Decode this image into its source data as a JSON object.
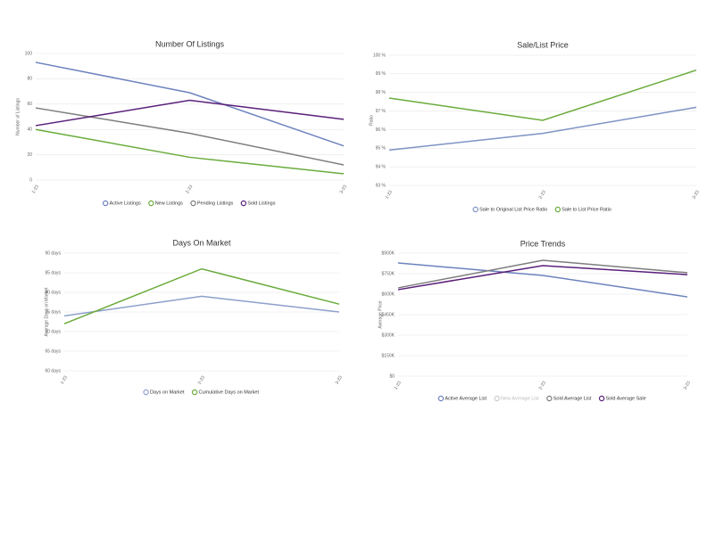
{
  "chart_data": [
    {
      "type": "line",
      "title": "Number Of Listings",
      "y_label": "Number of Listings",
      "categories": [
        "1-23",
        "2-23",
        "3-23"
      ],
      "ylim": [
        0,
        100
      ],
      "yticks": [
        0,
        20,
        40,
        60,
        80,
        100
      ],
      "grid": true,
      "series": [
        {
          "name": "Active Listings",
          "color": "#6b82bd",
          "values": [
            93,
            69,
            27
          ]
        },
        {
          "name": "New Listings",
          "color": "#6aab3c",
          "values": [
            40,
            18,
            5
          ]
        },
        {
          "name": "Pending Listings",
          "color": "#7d7d7d",
          "values": [
            57,
            37,
            12
          ]
        },
        {
          "name": "Sold Listings",
          "color": "#5a1f7a",
          "values": [
            43,
            63,
            48
          ]
        }
      ]
    },
    {
      "type": "line",
      "title": "Sale/List Price",
      "y_label": "Ratio",
      "categories": [
        "1-23",
        "2-23",
        "3-23"
      ],
      "ylim": [
        93,
        100
      ],
      "yticks": [
        {
          "value": 93,
          "label": "93 %"
        },
        {
          "value": 94,
          "label": "94 %"
        },
        {
          "value": 95,
          "label": "95 %"
        },
        {
          "value": 96,
          "label": "96 %"
        },
        {
          "value": 97,
          "label": "97 %"
        },
        {
          "value": 98,
          "label": "98 %"
        },
        {
          "value": 99,
          "label": "99 %"
        },
        {
          "value": 100,
          "label": "100 %"
        }
      ],
      "grid": true,
      "series": [
        {
          "name": "Sale to Original List Price Ratio",
          "color": "#7e93c4",
          "values": [
            94.9,
            95.8,
            97.2
          ]
        },
        {
          "name": "Sale to List Price Ratio",
          "color": "#6aab3c",
          "values": [
            97.7,
            96.5,
            99.2
          ]
        }
      ]
    },
    {
      "type": "line",
      "title": "Days On Market",
      "y_label": "Average Days on Market",
      "categories": [
        "1-23",
        "2-23",
        "3-23"
      ],
      "ylim": [
        60,
        90
      ],
      "yticks": [
        {
          "value": 60,
          "label": "60 days"
        },
        {
          "value": 65,
          "label": "65 days"
        },
        {
          "value": 70,
          "label": "70 days"
        },
        {
          "value": 75,
          "label": "75 days"
        },
        {
          "value": 80,
          "label": "80 days"
        },
        {
          "value": 85,
          "label": "85 days"
        },
        {
          "value": 90,
          "label": "90 days"
        }
      ],
      "grid": true,
      "series": [
        {
          "name": "Days on Market",
          "color": "#8ea0cc",
          "values": [
            74,
            79,
            75
          ]
        },
        {
          "name": "Cumulative Days on Market",
          "color": "#6aab3c",
          "values": [
            72,
            86,
            77
          ]
        }
      ]
    },
    {
      "type": "line",
      "title": "Price Trends",
      "y_label": "Average Price",
      "categories": [
        "1-23",
        "2-23",
        "3-23"
      ],
      "ylim": [
        0,
        900000
      ],
      "yticks": [
        {
          "value": 0,
          "label": "$0"
        },
        {
          "value": 150000,
          "label": "$150K"
        },
        {
          "value": 300000,
          "label": "$300K"
        },
        {
          "value": 450000,
          "label": "$450K"
        },
        {
          "value": 600000,
          "label": "$600K"
        },
        {
          "value": 750000,
          "label": "$750K"
        },
        {
          "value": 900000,
          "label": "$900K"
        }
      ],
      "grid": true,
      "series": [
        {
          "name": "Active Average List",
          "color": "#6b82bd",
          "values": [
            828000,
            737000,
            580000
          ]
        },
        {
          "name": "New Average List",
          "color": "#cccccc",
          "hidden": true,
          "values": [
            null,
            null,
            null
          ]
        },
        {
          "name": "Sold Average List",
          "color": "#7d7d7d",
          "values": [
            646000,
            848000,
            757000
          ]
        },
        {
          "name": "Sold Average Sale",
          "color": "#5a1f7a",
          "values": [
            633000,
            809000,
            743000
          ]
        }
      ]
    }
  ]
}
